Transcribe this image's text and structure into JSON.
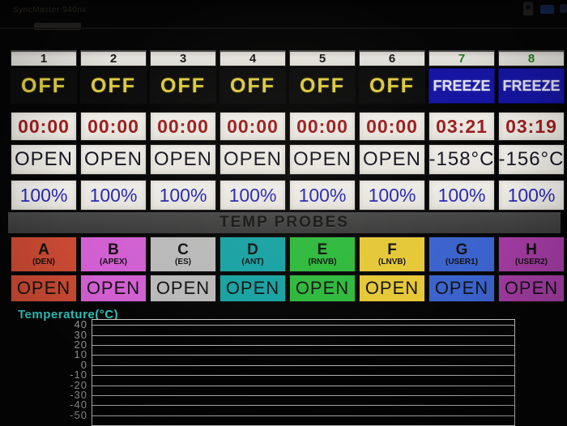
{
  "monitor": {
    "brand": "SyncMaster 940nx"
  },
  "section": {
    "title": "TEMP PROBES"
  },
  "colors": {
    "off_text": "#ddca40",
    "freeze_bg": "#1515a2",
    "timer_text": "#9c1d1d",
    "intensity_text": "#2828ae",
    "chart_title": "#2fc8bf"
  },
  "channels": [
    {
      "id": "1",
      "status": "OFF",
      "timer": "00:00",
      "temp": "OPEN",
      "intensity": "100%",
      "freezing": false
    },
    {
      "id": "2",
      "status": "OFF",
      "timer": "00:00",
      "temp": "OPEN",
      "intensity": "100%",
      "freezing": false
    },
    {
      "id": "3",
      "status": "OFF",
      "timer": "00:00",
      "temp": "OPEN",
      "intensity": "100%",
      "freezing": false
    },
    {
      "id": "4",
      "status": "OFF",
      "timer": "00:00",
      "temp": "OPEN",
      "intensity": "100%",
      "freezing": false
    },
    {
      "id": "5",
      "status": "OFF",
      "timer": "00:00",
      "temp": "OPEN",
      "intensity": "100%",
      "freezing": false
    },
    {
      "id": "6",
      "status": "OFF",
      "timer": "00:00",
      "temp": "OPEN",
      "intensity": "100%",
      "freezing": false
    },
    {
      "id": "7",
      "status": "FREEZE",
      "timer": "03:21",
      "temp": "-158°C",
      "intensity": "100%",
      "freezing": true
    },
    {
      "id": "8",
      "status": "FREEZE",
      "timer": "03:19",
      "temp": "-156°C",
      "intensity": "100%",
      "freezing": true
    }
  ],
  "probes": [
    {
      "letter": "A",
      "label": "(DEN)",
      "value": "OPEN",
      "color": "#cc4a33"
    },
    {
      "letter": "B",
      "label": "(APEX)",
      "value": "OPEN",
      "color": "#d25fd2"
    },
    {
      "letter": "C",
      "label": "(ES)",
      "value": "OPEN",
      "color": "#b9b9b9"
    },
    {
      "letter": "D",
      "label": "(ANT)",
      "value": "OPEN",
      "color": "#17a2a2"
    },
    {
      "letter": "E",
      "label": "(RNVB)",
      "value": "OPEN",
      "color": "#2eb93c"
    },
    {
      "letter": "F",
      "label": "(LNVB)",
      "value": "OPEN",
      "color": "#e6c836"
    },
    {
      "letter": "G",
      "label": "(USER1)",
      "value": "OPEN",
      "color": "#3b63cd"
    },
    {
      "letter": "H",
      "label": "(USER2)",
      "value": "OPEN",
      "color": "#a23ba2"
    }
  ],
  "chart_data": {
    "type": "line",
    "title": "Temperature(°C)",
    "xlabel": "",
    "ylabel": "Temperature(°C)",
    "yticks": [
      40,
      30,
      20,
      10,
      0,
      -10,
      -20,
      -30,
      -40,
      -50
    ],
    "ylim": [
      -60,
      45
    ],
    "grid": true,
    "legend": false,
    "series": []
  }
}
